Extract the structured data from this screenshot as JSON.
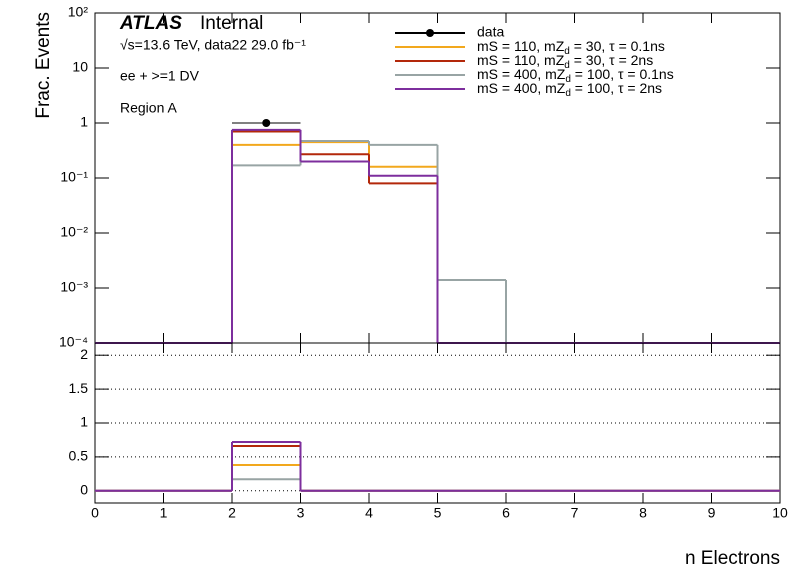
{
  "chart_data": [
    {
      "type": "histogram",
      "atlas": "ATLAS",
      "atlas_status": "Internal",
      "energy_label": "√s=13.6 TeV, data22 29.0 fb⁻¹",
      "selection": "ee + >=1 DV",
      "region": "Region A",
      "ylabel": "Frac. Events",
      "log_y": true,
      "ylim": [
        0.0001,
        100
      ],
      "yticks": [
        {
          "value": 100,
          "label": "10²"
        },
        10,
        1,
        {
          "value": 0.1,
          "label": "10⁻¹"
        },
        {
          "value": 0.01,
          "label": "10⁻²"
        },
        {
          "value": 0.001,
          "label": "10⁻³"
        },
        {
          "value": 0.0001,
          "label": "10⁻⁴"
        }
      ],
      "xlim": [
        0,
        10
      ],
      "bins": [
        0,
        1,
        2,
        3,
        4,
        5,
        6,
        7,
        8,
        9,
        10
      ],
      "legend": "top-right",
      "series": [
        {
          "name": "data",
          "color": "#000000",
          "style": "points",
          "values": [
            0,
            0,
            1.0,
            0,
            0,
            0,
            0,
            0,
            0,
            0
          ]
        },
        {
          "name": "mS = 110, mZd = 30, τ = 0.1ns",
          "color": "#f2a81d",
          "style": "step",
          "values": [
            0,
            0,
            0.4,
            0.45,
            0.16,
            0,
            0,
            0,
            0,
            0
          ]
        },
        {
          "name": "mS = 110, mZd = 30, τ = 2ns",
          "color": "#b3280a",
          "style": "step",
          "values": [
            0,
            0,
            0.7,
            0.27,
            0.08,
            0,
            0,
            0,
            0,
            0
          ]
        },
        {
          "name": "mS = 400, mZd = 100, τ = 0.1ns",
          "color": "#98a4a4",
          "style": "step",
          "values": [
            0,
            0,
            0.17,
            0.47,
            0.4,
            0.0014,
            0,
            0,
            0,
            0
          ]
        },
        {
          "name": "mS = 400, mZd = 100, τ = 2ns",
          "color": "#7d2e9d",
          "style": "step",
          "values": [
            0,
            0,
            0.75,
            0.2,
            0.11,
            0,
            0,
            0,
            0,
            0
          ]
        }
      ]
    },
    {
      "type": "histogram",
      "xlabel": "n Electrons",
      "ylim": [
        -0.18,
        2.18
      ],
      "yticks": [
        0,
        0.5,
        1,
        1.5,
        2
      ],
      "grid": true,
      "xlim": [
        0,
        10
      ],
      "xticks": [
        0,
        1,
        2,
        3,
        4,
        5,
        6,
        7,
        8,
        9,
        10
      ],
      "bins": [
        0,
        1,
        2,
        3,
        4,
        5,
        6,
        7,
        8,
        9,
        10
      ],
      "series": [
        {
          "color": "#f2a81d",
          "values": [
            0,
            0,
            0.38,
            0,
            0,
            0,
            0,
            0,
            0,
            0
          ]
        },
        {
          "color": "#b3280a",
          "values": [
            0,
            0,
            0.66,
            0,
            0,
            0,
            0,
            0,
            0,
            0
          ]
        },
        {
          "color": "#98a4a4",
          "values": [
            0,
            0,
            0.17,
            0,
            0,
            0,
            0,
            0,
            0,
            0
          ]
        },
        {
          "color": "#7d2e9d",
          "values": [
            0,
            0,
            0.72,
            0,
            0,
            0,
            0,
            0,
            0,
            0
          ]
        }
      ]
    }
  ]
}
